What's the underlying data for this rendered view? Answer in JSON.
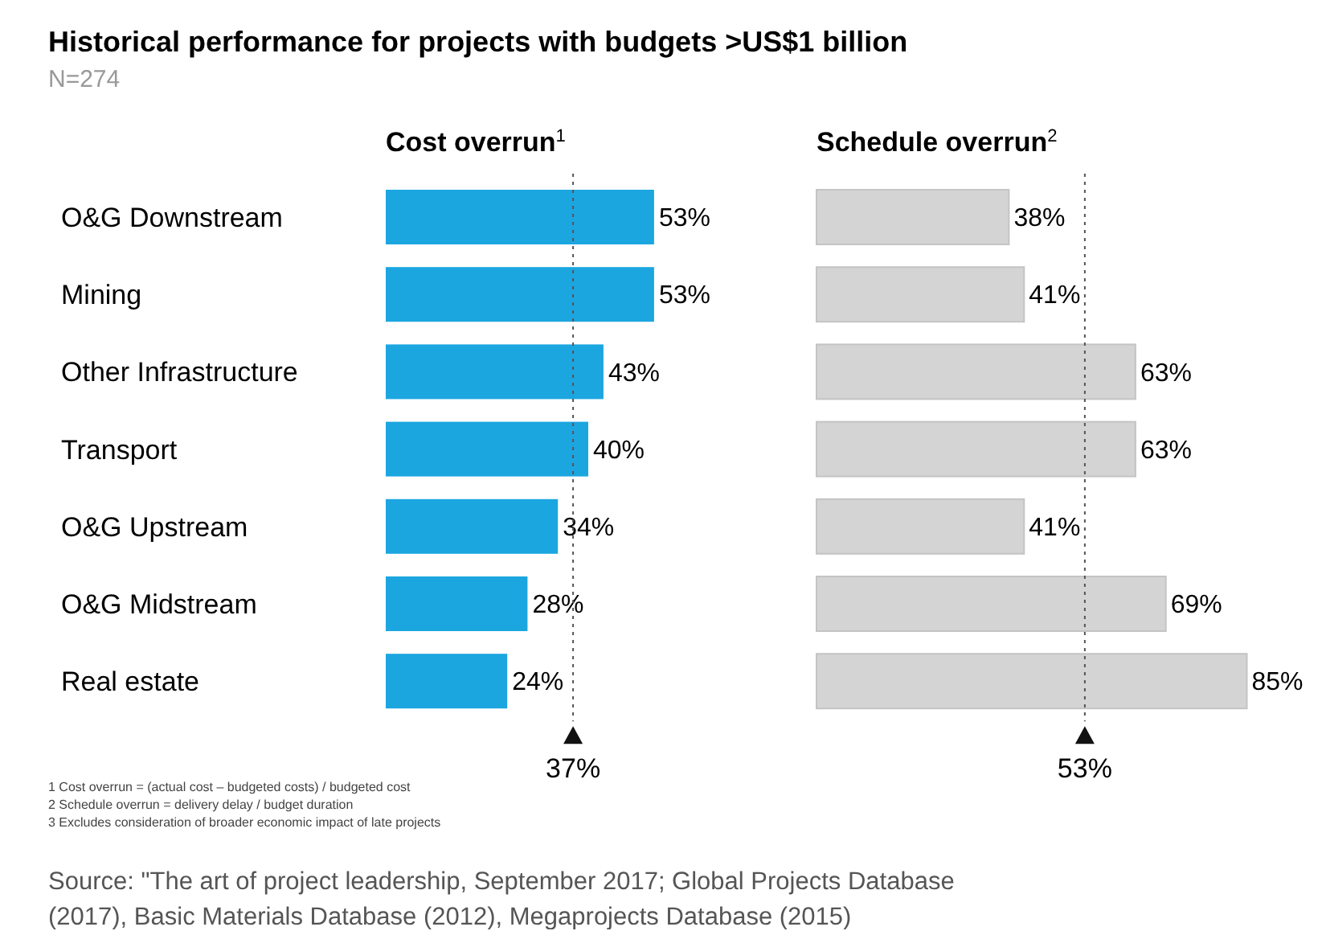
{
  "chart_data": [
    {
      "type": "bar",
      "orientation": "horizontal",
      "title": "Cost overrun$^{1}$",
      "categories": [
        "O&G Downstream",
        "Mining",
        "Other Infrastructure",
        "Transport",
        "O&G Upstream",
        "O&G Midstream",
        "Real estate"
      ],
      "values": [
        53,
        53,
        43,
        40,
        34,
        28,
        24
      ],
      "color": "#1ba6e0",
      "value_labels": [
        "53%",
        "53%",
        "43%",
        "40%",
        "34%",
        "28%",
        "24%"
      ],
      "ref_lines": [
        {
          "axis": "x",
          "value": 37,
          "label": "37%",
          "line_style": "dotted"
        }
      ],
      "annotations": [
        "Historical performance for projects with budgets >US$1 billion",
        "N=274",
        "1 Cost overrun = (actual cost – budgeted costs) / budgeted cost",
        "2 Schedule overrun = delivery delay / budget duration",
        "3 Excludes consideration of broader economic impact of late projects",
        "Source: \"The art of project leadership, September 2017; Global Projects Database (2017), Basic Materials Database (2012), Megaprojects Database (2015)"
      ]
    },
    {
      "type": "bar",
      "orientation": "horizontal",
      "title": "Schedule overrun$^{2}$",
      "categories": [
        null,
        null,
        null,
        null,
        null,
        null,
        null
      ],
      "values": [
        38,
        41,
        63,
        63,
        41,
        69,
        85
      ],
      "color": "#d4d4d4",
      "value_labels": [
        "38%",
        "41%",
        "63%",
        "63%",
        "41%",
        "69%",
        "85%"
      ],
      "ref_lines": [
        {
          "axis": "x",
          "value": 53,
          "label": "53%",
          "line_style": "dotted"
        }
      ]
    }
  ]
}
